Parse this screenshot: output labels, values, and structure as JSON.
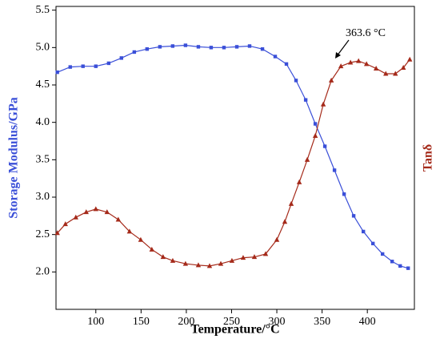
{
  "chart_data": {
    "type": "line",
    "x_label": "Temperature/°C",
    "y_label": "Storage Modulus/GPa",
    "y2_label": "Tanδ",
    "annotation": {
      "text": "363.6 °C",
      "x": 363.6
    },
    "xlim": [
      56,
      452
    ],
    "xticks": [
      100,
      150,
      200,
      250,
      300,
      350,
      400
    ],
    "ylim": [
      1.5,
      5.55
    ],
    "yticks": [
      {
        "value": 2,
        "label": "2.0"
      },
      2.5,
      {
        "value": 3,
        "label": "3.0"
      },
      3.5,
      {
        "value": 4,
        "label": "4.0"
      },
      4.5,
      {
        "value": 5,
        "label": "5.0"
      },
      5.5
    ],
    "y2lim": [
      1.5,
      5.55
    ],
    "series": [
      {
        "name": "Storage Modulus",
        "color": "#3a4fd8",
        "marker": "square",
        "x": [
          57.5,
          71.7,
          85.8,
          100,
          114.2,
          128.3,
          142.5,
          156.6,
          170.8,
          184.9,
          199.1,
          213.3,
          227.4,
          241.6,
          255.8,
          269.9,
          284.1,
          298.2,
          310.6,
          321.2,
          331.9,
          342.5,
          353.1,
          363.7,
          374.3,
          384.9,
          395.6,
          406.2,
          416.8,
          427.4,
          436.3,
          445.1
        ],
        "values": [
          4.67,
          4.74,
          4.75,
          4.75,
          4.79,
          4.86,
          4.94,
          4.98,
          5.01,
          5.02,
          5.03,
          5.01,
          5.0,
          5.0,
          5.01,
          5.02,
          4.98,
          4.88,
          4.78,
          4.56,
          4.3,
          3.98,
          3.68,
          3.36,
          3.04,
          2.75,
          2.54,
          2.38,
          2.24,
          2.14,
          2.08,
          2.05
        ]
      },
      {
        "name": "Tanδ",
        "color": "#a52a1a",
        "marker": "triangle",
        "axis": "y2",
        "x": [
          57.5,
          66.4,
          77.9,
          89.4,
          100,
          112.4,
          124.8,
          137.2,
          149.6,
          161.9,
          174.3,
          185,
          199.1,
          213.3,
          225.7,
          238.1,
          250.4,
          262.8,
          275.2,
          287.6,
          300,
          308.8,
          315.9,
          324.8,
          333.6,
          342.5,
          351.3,
          360.2,
          370.8,
          381.4,
          390.3,
          399.1,
          409.7,
          420.4,
          431,
          439.8,
          446.9
        ],
        "values": [
          2.52,
          2.64,
          2.73,
          2.8,
          2.84,
          2.8,
          2.7,
          2.54,
          2.43,
          2.3,
          2.2,
          2.15,
          2.11,
          2.09,
          2.08,
          2.11,
          2.15,
          2.19,
          2.2,
          2.24,
          2.43,
          2.67,
          2.91,
          3.2,
          3.5,
          3.82,
          4.24,
          4.56,
          4.75,
          4.8,
          4.82,
          4.78,
          4.72,
          4.65,
          4.65,
          4.73,
          4.84
        ]
      }
    ]
  }
}
